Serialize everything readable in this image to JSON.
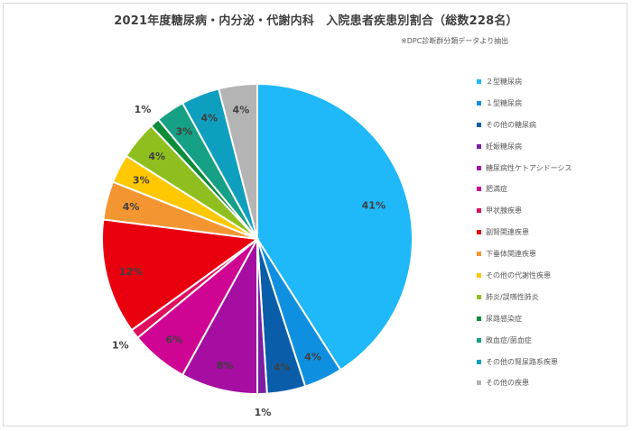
{
  "chart_data": {
    "type": "pie",
    "title": "2021年度糖尿病・内分泌・代謝内科　入院患者疾患別割合（総数228名）",
    "subtitle": "※DPC診断群分類データより抽出",
    "legend_position": "right",
    "slices": [
      {
        "name": "２型糖尿病",
        "value": 41,
        "label": "41%",
        "color": "#1fb8f8"
      },
      {
        "name": "１型糖尿病",
        "value": 4,
        "label": "4%",
        "color": "#0f8fe0"
      },
      {
        "name": "その他の糖尿病",
        "value": 4,
        "label": "4%",
        "color": "#0a5ea9"
      },
      {
        "name": "妊娠糖尿病",
        "value": 1,
        "label": "1%",
        "color": "#7b1fa2"
      },
      {
        "name": "糖尿病性ケトアシドーシス",
        "value": 8,
        "label": "8%",
        "color": "#a50ea0"
      },
      {
        "name": "肥満症",
        "value": 6,
        "label": "6%",
        "color": "#cf0493"
      },
      {
        "name": "甲状腺疾患",
        "value": 1,
        "label": "1%",
        "color": "#e0105f"
      },
      {
        "name": "副腎関連疾患",
        "value": 12,
        "label": "12%",
        "color": "#e8000e"
      },
      {
        "name": "下垂体関連疾患",
        "value": 4,
        "label": "4%",
        "color": "#f39530"
      },
      {
        "name": "その他の代謝性疾患",
        "value": 3,
        "label": "3%",
        "color": "#ffc800"
      },
      {
        "name": "肺炎/誤嚥性肺炎",
        "value": 4,
        "label": "4%",
        "color": "#8ebf1e"
      },
      {
        "name": "尿路感染症",
        "value": 1,
        "label": "1%",
        "color": "#0d8c3a"
      },
      {
        "name": "敗血症/菌血症",
        "value": 3,
        "label": "3%",
        "color": "#16a085"
      },
      {
        "name": "その他の腎尿路系疾患",
        "value": 4,
        "label": "4%",
        "color": "#0e9fbf"
      },
      {
        "name": "その他の疾患",
        "value": 4,
        "label": "4%",
        "color": "#b4b4b4"
      }
    ]
  }
}
